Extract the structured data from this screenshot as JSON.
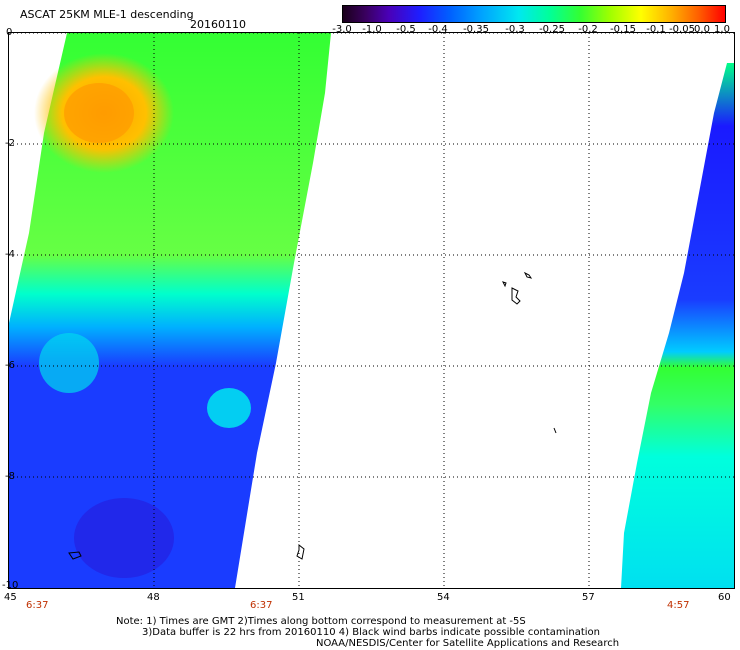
{
  "header": {
    "title": "ASCAT 25KM MLE-1 descending",
    "date": "20160110"
  },
  "colorbar": {
    "labels": [
      "-3.0",
      "-1.0",
      "-0.5",
      "-0.4",
      "-0.35",
      "-0.3",
      "-0.25",
      "-0.2",
      "-0.15",
      "-0.1",
      "-0.05",
      "0.0",
      "1.0"
    ]
  },
  "axes": {
    "y_labels": [
      "0",
      "-2",
      "-4",
      "-6",
      "-8",
      "-10"
    ],
    "x_labels": [
      "45",
      "48",
      "51",
      "54",
      "57",
      "60"
    ]
  },
  "times": [
    "6:37",
    "6:37",
    "4:57"
  ],
  "notes": {
    "line1": "Note: 1) Times are GMT 2)Times along bottom correspond to measurement at -5S",
    "line2": "3)Data buffer is 22 hrs from 20160110 4) Black wind barbs indicate possible contamination",
    "line3": "NOAA/NESDIS/Center for Satellite Applications and Research"
  },
  "colors": {
    "grid": "#000000",
    "time_label": "#c03000"
  }
}
